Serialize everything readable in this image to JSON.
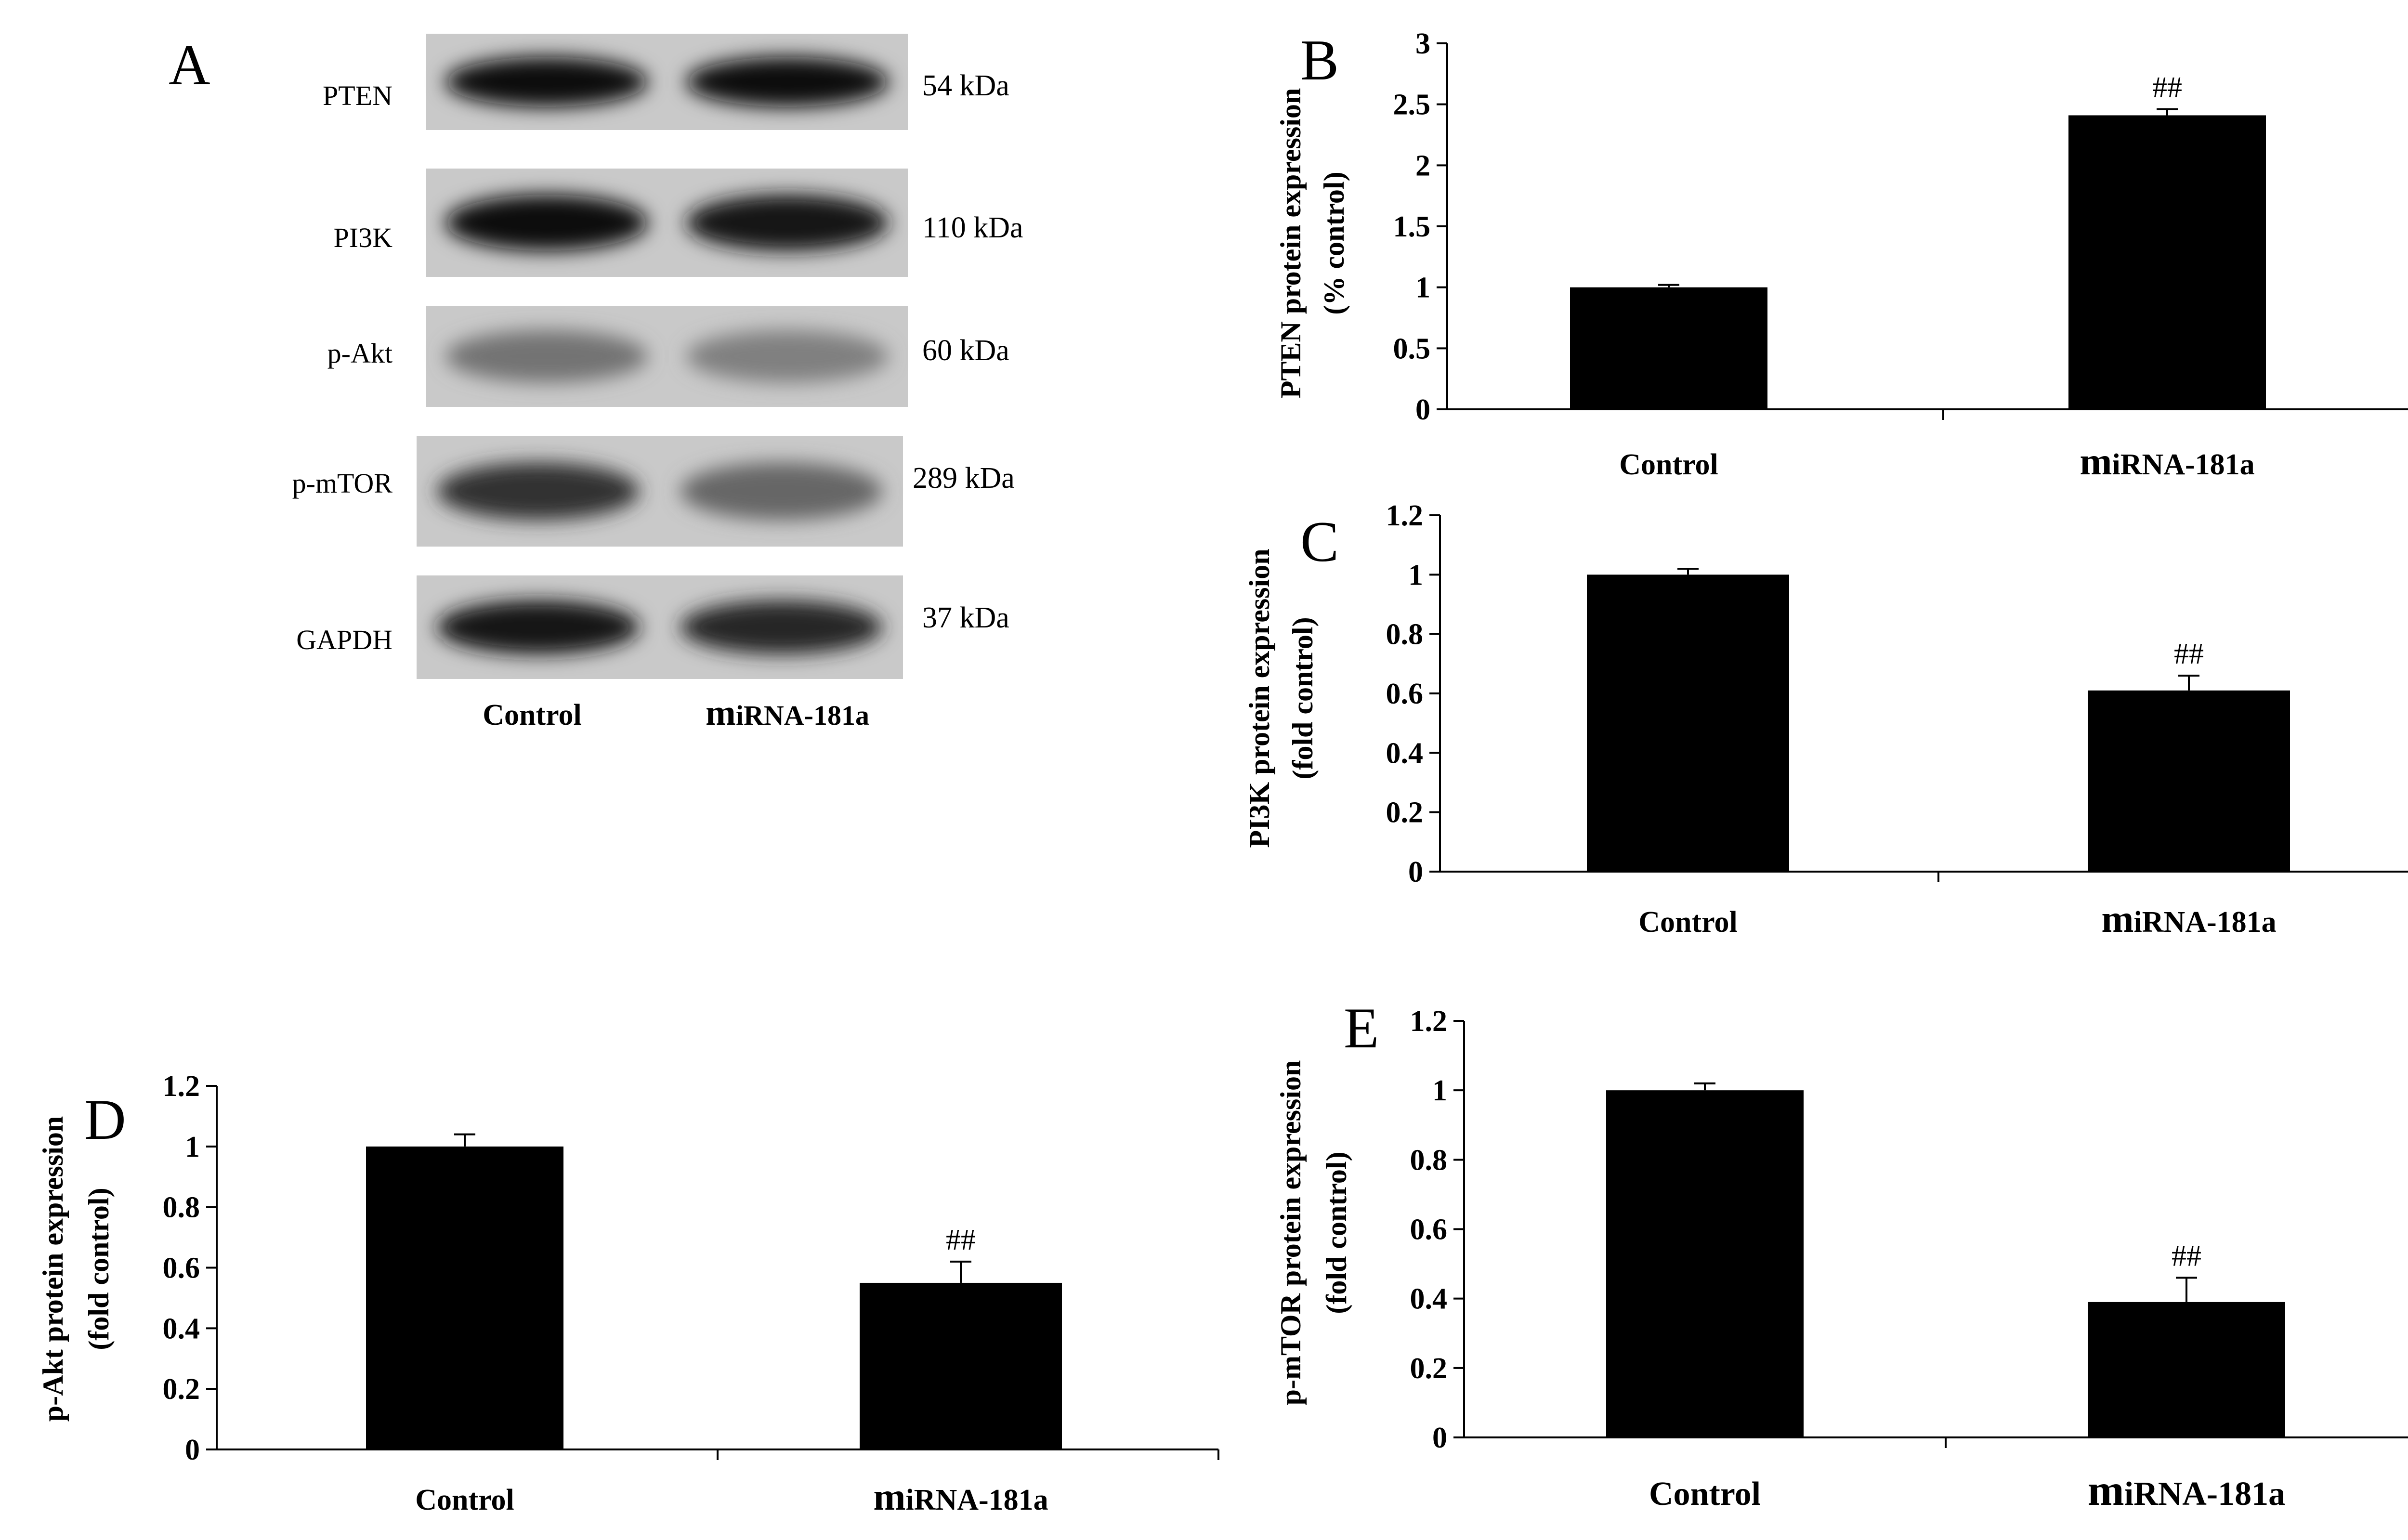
{
  "panel_a": {
    "letter": "A",
    "rows": [
      {
        "protein": "PTEN",
        "mw": "54 kDa",
        "intensity": [
          0.95,
          0.95
        ]
      },
      {
        "protein": "PI3K",
        "mw": "110 kDa",
        "intensity": [
          0.97,
          0.9
        ]
      },
      {
        "protein": "p-Akt",
        "mw": "60 kDa",
        "intensity": [
          0.55,
          0.5
        ]
      },
      {
        "protein": "p-mTOR",
        "mw": "289 kDa",
        "intensity": [
          0.8,
          0.6
        ]
      },
      {
        "protein": "GAPDH",
        "mw": "37 kDa",
        "intensity": [
          0.92,
          0.85
        ]
      }
    ],
    "lanes": {
      "control": "Control",
      "mirna_prefix": "m",
      "mirna_rest": "iRNA-181a"
    }
  },
  "chart_data": [
    {
      "panel": "B",
      "type": "bar",
      "categories": [
        {
          "prefix": "",
          "rest": "Control"
        },
        {
          "prefix": "m",
          "rest": "iRNA-181a"
        }
      ],
      "values": [
        1.0,
        2.41
      ],
      "errors": [
        0.02,
        0.05
      ],
      "annotations": [
        "",
        "##"
      ],
      "ylabel": [
        "PTEN protein expression",
        "(% control)"
      ],
      "ylim": [
        0,
        3
      ],
      "ticks": [
        "0",
        "0.5",
        "1",
        "1.5",
        "2",
        "2.5",
        "3"
      ]
    },
    {
      "panel": "C",
      "type": "bar",
      "categories": [
        {
          "prefix": "",
          "rest": "Control"
        },
        {
          "prefix": "m",
          "rest": "iRNA-181a"
        }
      ],
      "values": [
        1.0,
        0.61
      ],
      "errors": [
        0.02,
        0.05
      ],
      "annotations": [
        "",
        "##"
      ],
      "ylabel": [
        "PI3K protein expression",
        "(fold control)"
      ],
      "ylim": [
        0,
        1.2
      ],
      "ticks": [
        "0",
        "0.2",
        "0.4",
        "0.6",
        "0.8",
        "1",
        "1.2"
      ]
    },
    {
      "panel": "D",
      "type": "bar",
      "categories": [
        {
          "prefix": "",
          "rest": "Control"
        },
        {
          "prefix": "m",
          "rest": "iRNA-181a"
        }
      ],
      "values": [
        1.0,
        0.55
      ],
      "errors": [
        0.04,
        0.07
      ],
      "annotations": [
        "",
        "##"
      ],
      "ylabel": [
        "p-Akt protein expression",
        "(fold control)"
      ],
      "ylim": [
        0,
        1.2
      ],
      "ticks": [
        "0",
        "0.2",
        "0.4",
        "0.6",
        "0.8",
        "1",
        "1.2"
      ]
    },
    {
      "panel": "E",
      "type": "bar",
      "categories": [
        {
          "prefix": "",
          "rest": "Control"
        },
        {
          "prefix": "m",
          "rest": "iRNA-181a"
        }
      ],
      "values": [
        1.0,
        0.39
      ],
      "errors": [
        0.02,
        0.07
      ],
      "annotations": [
        "",
        "##"
      ],
      "ylabel": [
        "p-mTOR protein expression",
        "(fold control)"
      ],
      "ylim": [
        0,
        1.2
      ],
      "ticks": [
        "0",
        "0.2",
        "0.4",
        "0.6",
        "0.8",
        "1",
        "1.2"
      ]
    }
  ]
}
